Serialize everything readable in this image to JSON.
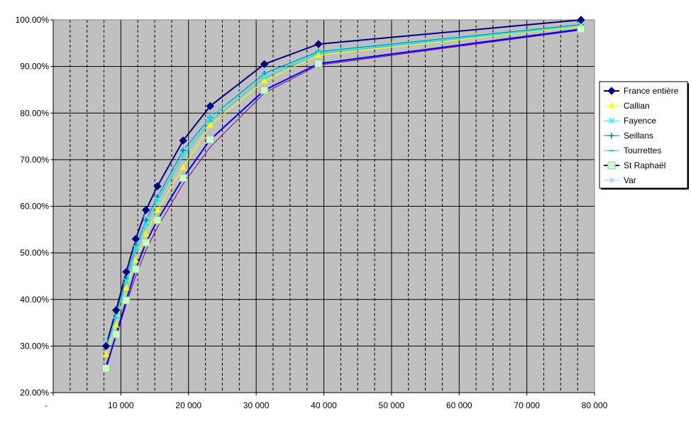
{
  "chart_data": {
    "type": "line",
    "title": "",
    "xlabel": "",
    "ylabel": "",
    "xlim": [
      0,
      80000
    ],
    "ylim": [
      0.2,
      1.0
    ],
    "grid": true,
    "legend_position": "right",
    "x_ticks": [
      {
        "value": 0,
        "label": "-"
      },
      {
        "value": 10000,
        "label": "10 000"
      },
      {
        "value": 20000,
        "label": "20 000"
      },
      {
        "value": 30000,
        "label": "30 000"
      },
      {
        "value": 40000,
        "label": "40 000"
      },
      {
        "value": 50000,
        "label": "50 000"
      },
      {
        "value": 60000,
        "label": "60 000"
      },
      {
        "value": 70000,
        "label": "70 000"
      },
      {
        "value": 80000,
        "label": "80 000"
      }
    ],
    "y_ticks": [
      {
        "value": 0.2,
        "label": "20.00%"
      },
      {
        "value": 0.3,
        "label": "30.00%"
      },
      {
        "value": 0.4,
        "label": "40.00%"
      },
      {
        "value": 0.5,
        "label": "50.00%"
      },
      {
        "value": 0.6,
        "label": "60.00%"
      },
      {
        "value": 0.7,
        "label": "70.00%"
      },
      {
        "value": 0.8,
        "label": "80.00%"
      },
      {
        "value": 0.9,
        "label": "90.00%"
      },
      {
        "value": 1.0,
        "label": "100.00%"
      }
    ],
    "x": [
      7800,
      9300,
      10800,
      12200,
      13700,
      15400,
      19200,
      23200,
      31200,
      39200,
      78000
    ],
    "series": [
      {
        "name": "France entière",
        "color": "#000080",
        "marker": "diamond",
        "values": [
          0.3,
          0.377,
          0.459,
          0.53,
          0.592,
          0.643,
          0.741,
          0.815,
          0.905,
          0.948,
          1.0
        ]
      },
      {
        "name": "Callian",
        "color": "#FFFF00",
        "marker": "triangle",
        "values": [
          0.282,
          0.345,
          0.425,
          0.484,
          0.54,
          0.592,
          0.683,
          0.774,
          0.869,
          0.924,
          0.986
        ]
      },
      {
        "name": "Fayence",
        "color": "#00FFFF",
        "marker": "x",
        "values": [
          0.3,
          0.365,
          0.44,
          0.512,
          0.562,
          0.615,
          0.712,
          0.79,
          0.88,
          0.93,
          0.988
        ]
      },
      {
        "name": "Seillans",
        "color": "#008080",
        "marker": "plus",
        "values": [
          0.3,
          0.37,
          0.445,
          0.515,
          0.57,
          0.62,
          0.72,
          0.79,
          0.885,
          0.932,
          0.99
        ]
      },
      {
        "name": "Tourrettes",
        "color": "#33CCCC",
        "marker": "dash",
        "values": [
          0.295,
          0.36,
          0.435,
          0.505,
          0.56,
          0.612,
          0.708,
          0.782,
          0.875,
          0.928,
          0.987
        ]
      },
      {
        "name": "St Raphaël",
        "color": "#0000FF",
        "marker": "square",
        "markerColor": "#CCFFCC",
        "markerStroke": "#99CC99",
        "values": [
          0.252,
          0.325,
          0.398,
          0.465,
          0.522,
          0.57,
          0.661,
          0.743,
          0.849,
          0.906,
          0.98
        ]
      },
      {
        "name": "Var",
        "color": "#99CCFF",
        "marker": "star",
        "values": [
          0.31,
          0.38,
          0.455,
          0.525,
          0.578,
          0.628,
          0.725,
          0.795,
          0.89,
          0.935,
          0.99
        ]
      }
    ],
    "extra_lines": [
      {
        "color": "#800080",
        "values": [
          0.26,
          0.32,
          0.39,
          0.45,
          0.505,
          0.555,
          0.648,
          0.727,
          0.843,
          0.903,
          0.978
        ]
      }
    ],
    "colors": {
      "plot_background": "#C0C0C0",
      "major_grid": "#000000",
      "minor_grid": "#000000"
    }
  }
}
